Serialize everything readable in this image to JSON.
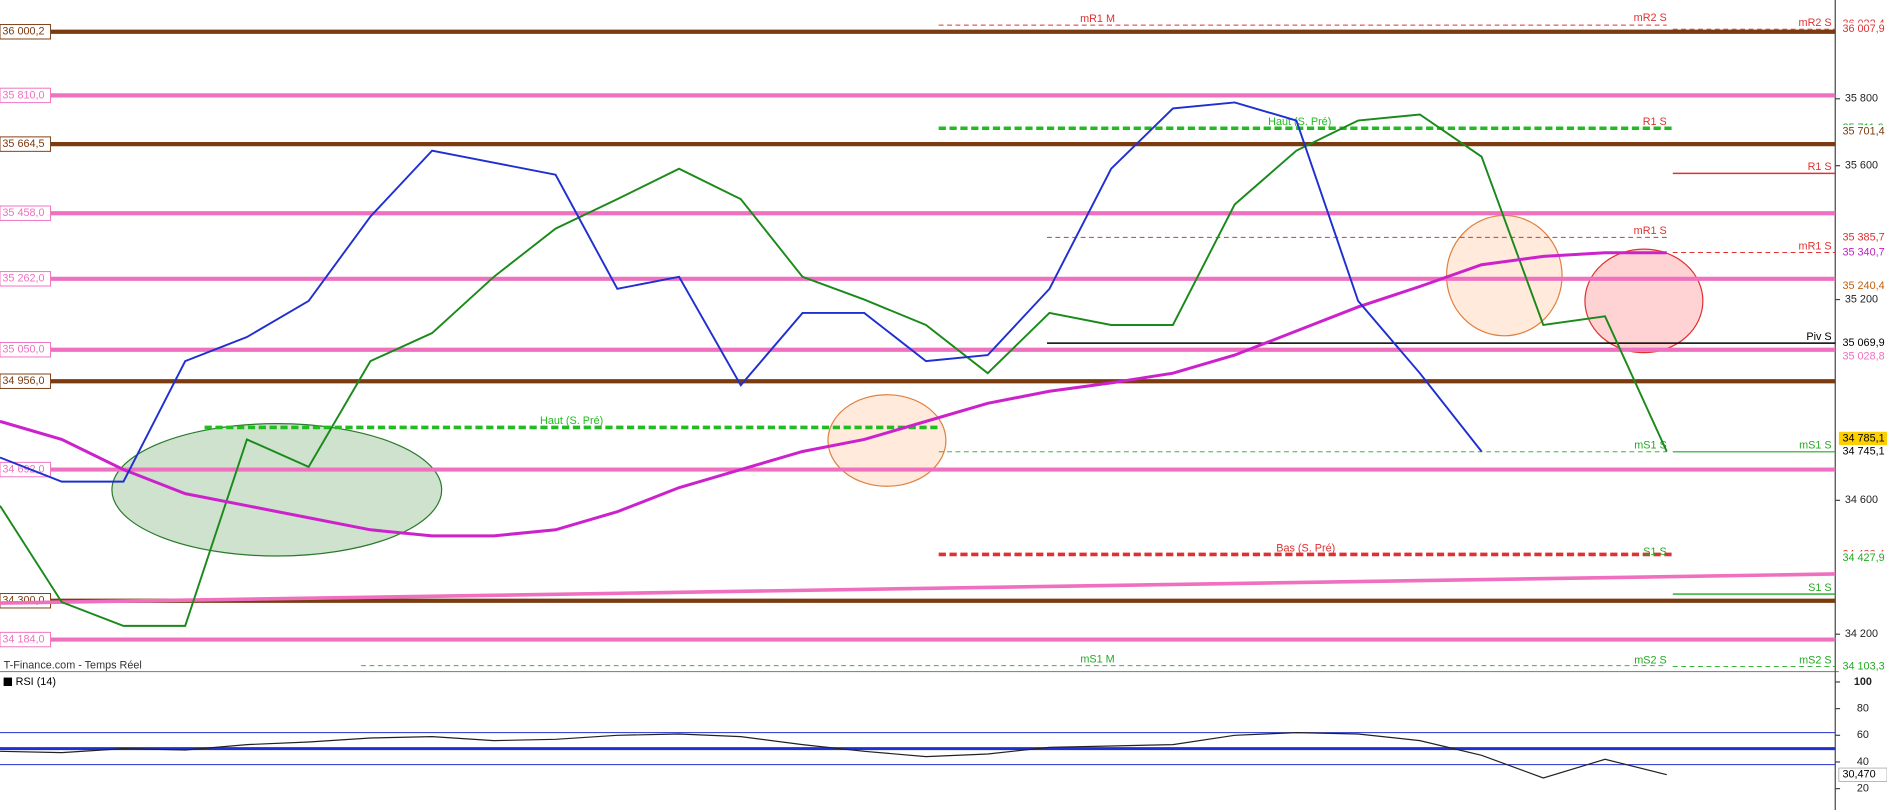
{
  "chart_data": [
    {
      "type": "line",
      "source": "T-Finance.com - Temps Réel",
      "ylim": [
        34092,
        36095
      ],
      "yticks": [
        {
          "value": 35800,
          "label": "35 800"
        },
        {
          "value": 35600,
          "label": "35 600"
        },
        {
          "value": 35200,
          "label": "35 200"
        },
        {
          "value": 34600,
          "label": "34 600"
        },
        {
          "value": 34200,
          "label": "34 200"
        }
      ],
      "series": [
        {
          "color": "#1a8a1a",
          "values": [
            34584,
            34296,
            34225,
            34225,
            34782,
            34700,
            35016,
            35100,
            35268,
            35412,
            35500,
            35591,
            35500,
            35268,
            35200,
            35124,
            34980,
            35160,
            35124,
            35124,
            35484,
            35645,
            35735,
            35753,
            35627,
            35124,
            35150,
            34746
          ]
        },
        {
          "color": "#cc22cc",
          "values": [
            34836,
            34782,
            34692,
            34620,
            34584,
            34548,
            34512,
            34494,
            34494,
            34512,
            34566,
            34638,
            34692,
            34746,
            34782,
            34836,
            34890,
            34926,
            34951,
            34980,
            35034,
            35106,
            35178,
            35239,
            35304,
            35329,
            35340,
            35340
          ]
        },
        {
          "color": "#1f2fd0",
          "values": [
            34728,
            34656,
            34656,
            35016,
            35088,
            35196,
            35448,
            35645,
            35609,
            35573,
            35232,
            35268,
            34944,
            35160,
            35160,
            35016,
            35034,
            35232,
            35591,
            35771,
            35789,
            35735,
            35196,
            34980,
            34746,
            null,
            null,
            null
          ]
        }
      ],
      "trendline": {
        "color": "#f070c0",
        "values": [
          34293,
          34380
        ]
      },
      "levels": [
        {
          "value": 36000.2,
          "label": "36 000,2",
          "color": "#7a3b10"
        },
        {
          "value": 35810,
          "label": "35 810,0",
          "color": "#f070c0"
        },
        {
          "value": 35664.5,
          "label": "35 664,5",
          "color": "#7a3b10"
        },
        {
          "value": 35458,
          "label": "35 458,0",
          "color": "#f070c0"
        },
        {
          "value": 35262,
          "label": "35 262,0",
          "color": "#f070c0"
        },
        {
          "value": 35050,
          "label": "35 050,0",
          "color": "#f070c0"
        },
        {
          "value": 34956,
          "label": "34 956,0",
          "color": "#7a3b10"
        },
        {
          "value": 34692,
          "label": "34 692,0",
          "color": "#f070c0"
        },
        {
          "value": 34300,
          "label": "34 300,0",
          "color": "#7a3b10"
        },
        {
          "value": 34184,
          "label": "34 184,0",
          "color": "#f070c0"
        }
      ],
      "pivots": [
        {
          "label": "mR1 M",
          "value": 36020,
          "color": "#e03030"
        },
        {
          "label": "mR2 S",
          "value": 36022.4,
          "color": "#e03030"
        },
        {
          "label": "mR2 S",
          "value": 36007.9,
          "color": "#e03030"
        },
        {
          "label": "Haut (S. Pré)",
          "value": 35711.9,
          "color": "#22bb22"
        },
        {
          "label": "R1 S",
          "value": 35711.9,
          "color": "#e03030"
        },
        {
          "label": "R1 S",
          "value": 35577,
          "color": "#e03030"
        },
        {
          "label": "mR1 S",
          "value": 35385.7,
          "color": "#e03030"
        },
        {
          "label": "mR1 S",
          "value": 35340.7,
          "color": "#e03030"
        },
        {
          "label": "Piv S",
          "value": 35069.9,
          "color": "#000000"
        },
        {
          "label": "Haut (S. Pré)",
          "value": 34818,
          "color": "#22bb22"
        },
        {
          "label": "mS1 S",
          "value": 34745.1,
          "color": "#22aa22"
        },
        {
          "label": "mS1 S",
          "value": 34745.1,
          "color": "#22aa22"
        },
        {
          "label": "Bas (S. Pré)",
          "value": 34438.4,
          "color": "#e03030"
        },
        {
          "label": "S1 S",
          "value": 34427.9,
          "color": "#22aa22"
        },
        {
          "label": "S1 S",
          "value": 34320,
          "color": "#22aa22"
        },
        {
          "label": "mS1 M",
          "value": 34106,
          "color": "#22aa22"
        },
        {
          "label": "mS2 S",
          "value": 34103.3,
          "color": "#22aa22"
        },
        {
          "label": "mS2 S",
          "value": 34103.3,
          "color": "#22aa22"
        }
      ],
      "right_labels": [
        {
          "value": 36022.4,
          "label": "36 022,4",
          "color": "#e03030"
        },
        {
          "value": 36007.9,
          "label": "36 007,9",
          "color": "#e03030"
        },
        {
          "value": 35711.9,
          "label": "35 711,9",
          "color": "#22aa22"
        },
        {
          "value": 35701.4,
          "label": "35 701,4",
          "color": "#7a3b10"
        },
        {
          "value": 35385.7,
          "label": "35 385,7",
          "color": "#e03030"
        },
        {
          "value": 35340.7,
          "label": "35 340,7",
          "color": "#c020c0"
        },
        {
          "value": 35240.4,
          "label": "35 240,4",
          "color": "#c06010"
        },
        {
          "value": 35069.9,
          "label": "35 069,9",
          "color": "#000000"
        },
        {
          "value": 35028.8,
          "label": "35 028,8",
          "color": "#f070c0"
        },
        {
          "value": 34785.1,
          "label": "34 785,1",
          "color": "#000000",
          "background": "#ffd000"
        },
        {
          "value": 34745.1,
          "label": "34 745,1",
          "color": "#000000"
        },
        {
          "value": 34438.4,
          "label": "34 438,4",
          "color": "#e03030"
        },
        {
          "value": 34427.9,
          "label": "34 427,9",
          "color": "#22aa22"
        },
        {
          "value": 34103.3,
          "label": "34 103,3",
          "color": "#22aa22"
        }
      ]
    },
    {
      "type": "line",
      "title": "RSI (14)",
      "ylim": [
        4,
        106
      ],
      "yticks": [
        100,
        80,
        60,
        40,
        20
      ],
      "levels": [
        38,
        50,
        62
      ],
      "color": "#222222",
      "values": [
        48,
        47,
        50,
        49,
        53,
        55,
        58,
        59,
        56,
        57,
        60,
        61,
        59,
        53,
        48,
        44,
        46,
        51,
        52,
        53,
        60,
        62,
        61,
        56,
        45,
        28,
        42,
        30.47
      ],
      "last": {
        "value": 30.47,
        "label": "30,470"
      }
    }
  ]
}
